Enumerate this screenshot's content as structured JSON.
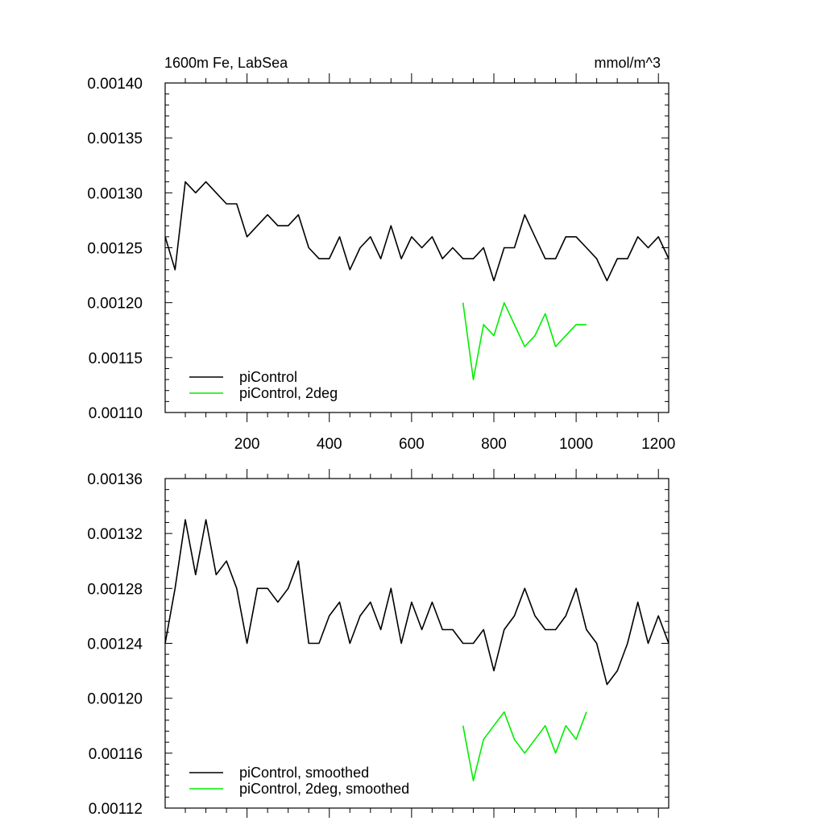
{
  "figure": {
    "title_left": "1600m Fe, LabSea",
    "title_right": "mmol/m^3"
  },
  "chart_data": [
    {
      "type": "line",
      "xlim": [
        1,
        1225
      ],
      "ylim": [
        0.0011,
        0.0014
      ],
      "x_ticks": [
        200,
        400,
        600,
        800,
        1000,
        1200
      ],
      "x_tick_labels": [
        "200",
        "400",
        "600",
        "800",
        "1000",
        "1200"
      ],
      "y_ticks": [
        0.0011,
        0.00115,
        0.0012,
        0.00125,
        0.0013,
        0.00135,
        0.0014
      ],
      "y_tick_labels": [
        "0.00110",
        "0.00115",
        "0.00120",
        "0.00125",
        "0.00130",
        "0.00135",
        "0.00140"
      ],
      "grid": false,
      "legend_position": "bottom-left",
      "series": [
        {
          "name": "piControl",
          "color": "#000000",
          "x": [
            1,
            25,
            50,
            75,
            100,
            125,
            150,
            175,
            200,
            225,
            250,
            275,
            300,
            325,
            350,
            375,
            400,
            425,
            450,
            475,
            500,
            525,
            550,
            575,
            600,
            625,
            650,
            675,
            700,
            725,
            750,
            775,
            800,
            825,
            850,
            875,
            900,
            925,
            950,
            975,
            1000,
            1025,
            1050,
            1075,
            1100,
            1125,
            1150,
            1175,
            1200,
            1225
          ],
          "values": [
            0.00126,
            0.00123,
            0.00131,
            0.0013,
            0.00131,
            0.0013,
            0.00129,
            0.00129,
            0.00126,
            0.00127,
            0.00128,
            0.00127,
            0.00127,
            0.00128,
            0.00125,
            0.00124,
            0.00124,
            0.00126,
            0.00123,
            0.00125,
            0.00126,
            0.00124,
            0.00127,
            0.00124,
            0.00126,
            0.00125,
            0.00126,
            0.00124,
            0.00125,
            0.00124,
            0.00124,
            0.00125,
            0.00122,
            0.00125,
            0.00125,
            0.00128,
            0.00126,
            0.00124,
            0.00124,
            0.00126,
            0.00126,
            0.00125,
            0.00124,
            0.00122,
            0.00124,
            0.00124,
            0.00126,
            0.00125,
            0.00126,
            0.00124
          ]
        },
        {
          "name": "piControl, 2deg",
          "color": "#00ee00",
          "x": [
            725,
            750,
            775,
            800,
            825,
            850,
            875,
            900,
            925,
            950,
            975,
            1000,
            1025
          ],
          "values": [
            0.0012,
            0.00113,
            0.00118,
            0.00117,
            0.0012,
            0.00118,
            0.00116,
            0.00117,
            0.00119,
            0.00116,
            0.00117,
            0.00118,
            0.00118
          ]
        }
      ]
    },
    {
      "type": "line",
      "xlim": [
        1,
        1225
      ],
      "ylim": [
        0.00112,
        0.00136
      ],
      "x_ticks": [
        200,
        400,
        600,
        800,
        1000,
        1200
      ],
      "y_ticks": [
        0.00112,
        0.00116,
        0.0012,
        0.00124,
        0.00128,
        0.00132,
        0.00136
      ],
      "y_tick_labels": [
        "0.00112",
        "0.00116",
        "0.00120",
        "0.00124",
        "0.00128",
        "0.00132",
        "0.00136"
      ],
      "grid": false,
      "legend_position": "bottom-left",
      "series": [
        {
          "name": "piControl, smoothed",
          "color": "#000000",
          "x": [
            1,
            25,
            50,
            75,
            100,
            125,
            150,
            175,
            200,
            225,
            250,
            275,
            300,
            325,
            350,
            375,
            400,
            425,
            450,
            475,
            500,
            525,
            550,
            575,
            600,
            625,
            650,
            675,
            700,
            725,
            750,
            775,
            800,
            825,
            850,
            875,
            900,
            925,
            950,
            975,
            1000,
            1025,
            1050,
            1075,
            1100,
            1125,
            1150,
            1175,
            1200,
            1225
          ],
          "values": [
            0.00124,
            0.00128,
            0.00133,
            0.00129,
            0.00133,
            0.00129,
            0.0013,
            0.00128,
            0.00124,
            0.00128,
            0.00128,
            0.00127,
            0.00128,
            0.0013,
            0.00124,
            0.00124,
            0.00126,
            0.00127,
            0.00124,
            0.00126,
            0.00127,
            0.00125,
            0.00128,
            0.00124,
            0.00127,
            0.00125,
            0.00127,
            0.00125,
            0.00125,
            0.00124,
            0.00124,
            0.00125,
            0.00122,
            0.00125,
            0.00126,
            0.00128,
            0.00126,
            0.00125,
            0.00125,
            0.00126,
            0.00128,
            0.00125,
            0.00124,
            0.00121,
            0.00122,
            0.00124,
            0.00127,
            0.00124,
            0.00126,
            0.00124
          ]
        },
        {
          "name": "piControl, 2deg, smoothed",
          "color": "#00ee00",
          "x": [
            725,
            750,
            775,
            800,
            825,
            850,
            875,
            900,
            925,
            950,
            975,
            1000,
            1025
          ],
          "values": [
            0.00118,
            0.00114,
            0.00117,
            0.00118,
            0.00119,
            0.00117,
            0.00116,
            0.00117,
            0.00118,
            0.00116,
            0.00118,
            0.00117,
            0.00119
          ]
        }
      ]
    }
  ]
}
